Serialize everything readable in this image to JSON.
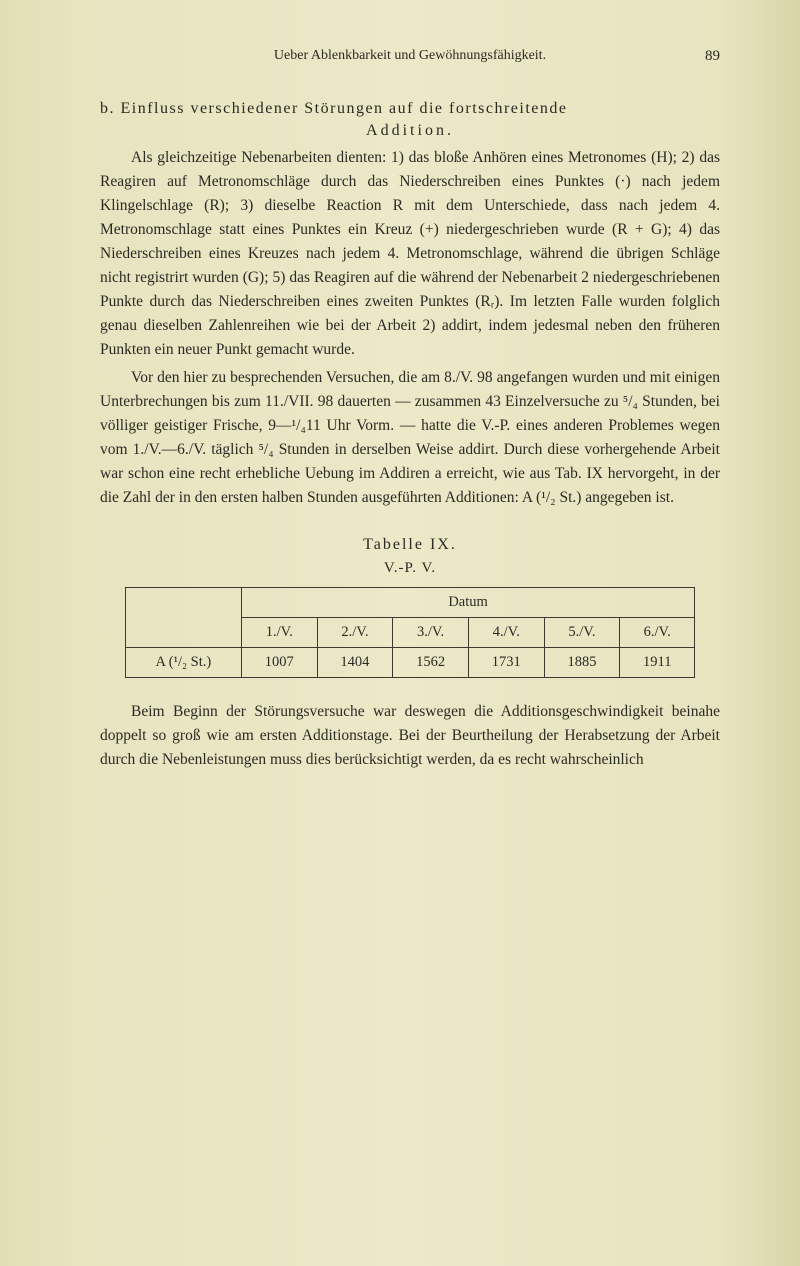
{
  "page": {
    "running_title": "Ueber Ablenkbarkeit und Gewöhnungsfähigkeit.",
    "page_number": "89"
  },
  "section": {
    "prefix": "b.",
    "title_line1": "Einfluss verschiedener Störungen auf die fortschreitende",
    "title_line2": "Addition."
  },
  "paragraphs": {
    "p1": "Als gleichzeitige Nebenarbeiten dienten: 1) das bloße Anhören eines Metronomes (H); 2) das Reagiren auf Metronomschläge durch das Niederschreiben eines Punktes (·) nach jedem Klingelschlage (R); 3) dieselbe Reaction R mit dem Unterschiede, dass nach jedem 4. Metronomschlage statt eines Punktes ein Kreuz (+) niedergeschrieben wurde (R + G); 4) das Niederschreiben eines Kreuzes nach jedem 4. Metronomschlage, während die übrigen Schläge nicht registrirt wurden (G); 5) das Reagiren auf die während der Nebenarbeit 2 niedergeschriebenen Punkte durch das Niederschreiben eines zweiten Punktes (Rᵣ). Im letzten Falle wurden folglich genau dieselben Zahlenreihen wie bei der Arbeit 2) addirt, indem jedesmal neben den früheren Punkten ein neuer Punkt gemacht wurde.",
    "p2": "Vor den hier zu besprechenden Versuchen, die am 8./V. 98 angefangen wurden und mit einigen Unterbrechungen bis zum 11./VII. 98 dauerten — zusammen 43 Einzelversuche zu ⁵/₄ Stunden, bei völliger geistiger Frische, 9—¹/₄11 Uhr Vorm. — hatte die V.-P. eines anderen Problemes wegen vom 1./V.—6./V. täglich ⁵/₄ Stunden in derselben Weise addirt. Durch diese vorhergehende Arbeit war schon eine recht erhebliche Uebung im Addiren a erreicht, wie aus Tab. IX hervorgeht, in der die Zahl der in den ersten halben Stunden ausgeführten Additionen: A (¹/₂ St.) angegeben ist.",
    "p3": "Beim Beginn der Störungsversuche war deswegen die Additionsgeschwindigkeit beinahe doppelt so groß wie am ersten Additionstage. Bei der Beurtheilung der Herabsetzung der Arbeit durch die Nebenleistungen muss dies berücksichtigt werden, da es recht wahrscheinlich"
  },
  "table": {
    "caption": "Tabelle IX.",
    "subcaption": "V.-P. V.",
    "header_span": "Datum",
    "columns": [
      "1./V.",
      "2./V.",
      "3./V.",
      "4./V.",
      "5./V.",
      "6./V."
    ],
    "row_label": "A (¹/₂ St.)",
    "row_values": [
      "1007",
      "1404",
      "1562",
      "1731",
      "1885",
      "1911"
    ],
    "border_color": "#3a3a30"
  },
  "colors": {
    "background": "#e8e4c0",
    "text": "#2a2a22"
  }
}
